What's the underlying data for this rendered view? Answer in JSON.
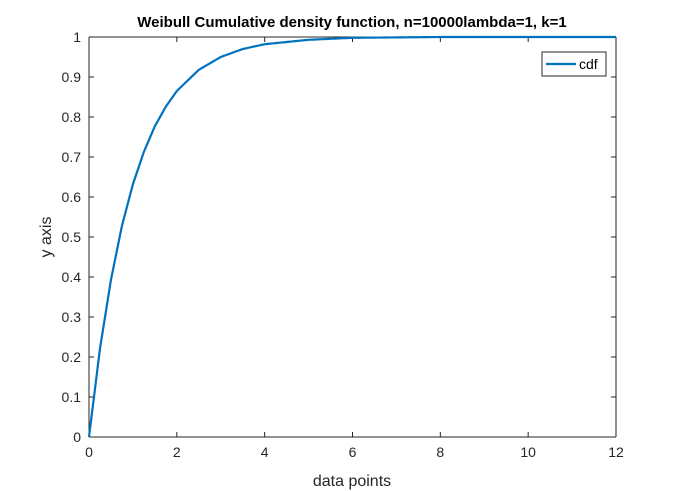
{
  "chart_data": {
    "type": "line",
    "title": "Weibull Cumulative density function, n=10000lambda=1, k=1",
    "xlabel": "data points",
    "ylabel": "y axis",
    "xlim": [
      0,
      12
    ],
    "ylim": [
      0,
      1
    ],
    "xticks": [
      "0",
      "2",
      "4",
      "6",
      "8",
      "10",
      "12"
    ],
    "yticks": [
      "0",
      "0.1",
      "0.2",
      "0.3",
      "0.4",
      "0.5",
      "0.6",
      "0.7",
      "0.8",
      "0.9",
      "1"
    ],
    "grid": false,
    "legend_position": "top-right",
    "series": [
      {
        "name": "cdf",
        "color": "#0072BD",
        "x": [
          0,
          0.25,
          0.5,
          0.75,
          1,
          1.25,
          1.5,
          1.75,
          2,
          2.5,
          3,
          3.5,
          4,
          5,
          6,
          7,
          8,
          9,
          10,
          11,
          12
        ],
        "y": [
          0,
          0.221,
          0.393,
          0.528,
          0.632,
          0.713,
          0.777,
          0.826,
          0.865,
          0.918,
          0.95,
          0.97,
          0.982,
          0.993,
          0.998,
          0.999,
          1,
          1,
          1,
          1,
          1
        ]
      }
    ]
  }
}
